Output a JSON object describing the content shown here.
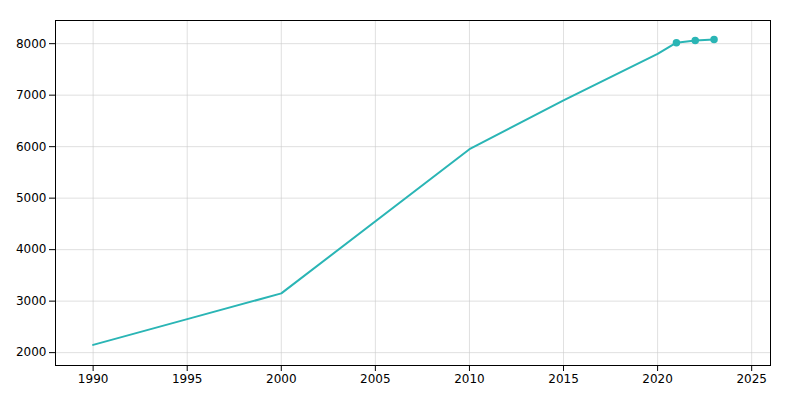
{
  "chart_data": {
    "type": "line",
    "x": [
      1990,
      1995,
      2000,
      2010,
      2015,
      2020,
      2021,
      2022,
      2023
    ],
    "values": [
      2150,
      2650,
      3150,
      5950,
      6900,
      7800,
      8020,
      8060,
      8080
    ],
    "color": "#2ab5b5",
    "marker": "circle",
    "xlim": [
      1988,
      2026
    ],
    "ylim": [
      1750,
      8450
    ],
    "xticks": [
      1990,
      1995,
      2000,
      2005,
      2010,
      2015,
      2020,
      2025
    ],
    "yticks": [
      2000,
      3000,
      4000,
      5000,
      6000,
      7000,
      8000
    ],
    "grid": true
  }
}
